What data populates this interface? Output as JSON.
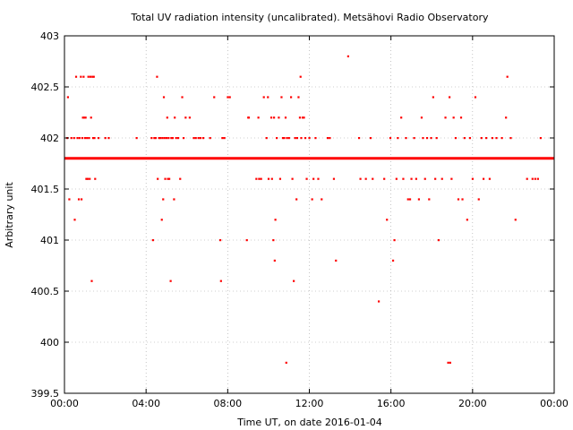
{
  "chart_data": {
    "type": "scatter",
    "title": "Total UV radiation intensity (uncalibrated). Metsähovi Radio Observatory",
    "xlabel": "Time UT, on date 2016-01-04",
    "ylabel": "Arbitrary unit",
    "xlim": [
      "00:00",
      "24:00"
    ],
    "ylim": [
      399.5,
      403
    ],
    "grid": true,
    "marker_color": "#ff0000",
    "x_ticks": [
      "00:00",
      "04:00",
      "08:00",
      "12:00",
      "16:00",
      "20:00",
      "00:00"
    ],
    "y_ticks": [
      "399.5",
      "400",
      "400.5",
      "401",
      "401.5",
      "402",
      "402.5",
      "403"
    ],
    "baseline": {
      "y": 401.8,
      "from": "00:00",
      "to": "24:00"
    },
    "points": [
      [
        "00:08",
        402.0
      ],
      [
        "00:10",
        402.4
      ],
      [
        "00:14",
        401.4
      ],
      [
        "00:20",
        402.0
      ],
      [
        "00:28",
        402.0
      ],
      [
        "00:30",
        401.2
      ],
      [
        "00:34",
        402.6
      ],
      [
        "00:38",
        402.0
      ],
      [
        "00:42",
        401.4
      ],
      [
        "00:44",
        402.0
      ],
      [
        "00:48",
        402.6
      ],
      [
        "00:50",
        401.4
      ],
      [
        "00:52",
        402.0
      ],
      [
        "00:54",
        402.2
      ],
      [
        "00:56",
        402.6
      ],
      [
        "00:58",
        402.2
      ],
      [
        "01:00",
        402.0
      ],
      [
        "01:02",
        402.2
      ],
      [
        "01:04",
        401.6
      ],
      [
        "01:06",
        402.0
      ],
      [
        "01:08",
        401.6
      ],
      [
        "01:10",
        402.6
      ],
      [
        "01:12",
        402.0
      ],
      [
        "01:14",
        401.6
      ],
      [
        "01:16",
        402.6
      ],
      [
        "01:18",
        402.2
      ],
      [
        "01:20",
        400.6
      ],
      [
        "01:22",
        402.6
      ],
      [
        "01:24",
        402.0
      ],
      [
        "01:26",
        402.6
      ],
      [
        "01:28",
        402.0
      ],
      [
        "01:30",
        401.6
      ],
      [
        "01:40",
        402.0
      ],
      [
        "02:10",
        402.0
      ],
      [
        "02:00",
        402.0
      ],
      [
        "03:32",
        402.0
      ],
      [
        "04:16",
        402.0
      ],
      [
        "04:20",
        401.0
      ],
      [
        "04:24",
        402.0
      ],
      [
        "04:28",
        402.0
      ],
      [
        "04:32",
        402.6
      ],
      [
        "04:34",
        401.6
      ],
      [
        "04:38",
        402.0
      ],
      [
        "04:42",
        402.0
      ],
      [
        "04:46",
        401.2
      ],
      [
        "04:48",
        402.0
      ],
      [
        "04:50",
        401.4
      ],
      [
        "04:52",
        402.4
      ],
      [
        "04:54",
        402.0
      ],
      [
        "04:56",
        401.6
      ],
      [
        "05:00",
        402.0
      ],
      [
        "05:02",
        402.2
      ],
      [
        "05:04",
        401.6
      ],
      [
        "05:06",
        402.0
      ],
      [
        "05:08",
        401.6
      ],
      [
        "05:12",
        400.6
      ],
      [
        "05:14",
        402.0
      ],
      [
        "05:18",
        402.0
      ],
      [
        "05:22",
        401.4
      ],
      [
        "05:24",
        402.2
      ],
      [
        "05:28",
        402.0
      ],
      [
        "05:34",
        402.0
      ],
      [
        "05:40",
        401.6
      ],
      [
        "05:46",
        402.4
      ],
      [
        "05:50",
        402.0
      ],
      [
        "05:56",
        402.2
      ],
      [
        "06:08",
        402.2
      ],
      [
        "06:20",
        402.0
      ],
      [
        "06:26",
        402.0
      ],
      [
        "06:34",
        402.0
      ],
      [
        "06:40",
        402.0
      ],
      [
        "06:48",
        402.0
      ],
      [
        "07:08",
        402.0
      ],
      [
        "07:20",
        402.4
      ],
      [
        "07:38",
        401.0
      ],
      [
        "07:40",
        400.6
      ],
      [
        "07:44",
        402.0
      ],
      [
        "07:50",
        402.0
      ],
      [
        "08:00",
        402.4
      ],
      [
        "08:06",
        402.4
      ],
      [
        "08:56",
        401.0
      ],
      [
        "09:00",
        402.2
      ],
      [
        "09:02",
        402.2
      ],
      [
        "09:24",
        401.6
      ],
      [
        "09:30",
        402.2
      ],
      [
        "09:32",
        401.6
      ],
      [
        "09:38",
        401.6
      ],
      [
        "09:46",
        402.4
      ],
      [
        "09:54",
        402.0
      ],
      [
        "09:58",
        402.4
      ],
      [
        "10:00",
        401.6
      ],
      [
        "10:08",
        402.2
      ],
      [
        "10:10",
        401.6
      ],
      [
        "10:14",
        401.0
      ],
      [
        "10:16",
        402.2
      ],
      [
        "10:18",
        400.8
      ],
      [
        "10:20",
        401.2
      ],
      [
        "10:24",
        402.0
      ],
      [
        "10:30",
        402.2
      ],
      [
        "10:34",
        401.6
      ],
      [
        "10:38",
        402.4
      ],
      [
        "10:42",
        402.0
      ],
      [
        "10:46",
        402.0
      ],
      [
        "10:50",
        402.2
      ],
      [
        "10:52",
        399.8
      ],
      [
        "10:54",
        402.0
      ],
      [
        "11:00",
        402.0
      ],
      [
        "11:06",
        402.4
      ],
      [
        "11:10",
        401.6
      ],
      [
        "11:14",
        400.6
      ],
      [
        "11:18",
        402.0
      ],
      [
        "11:22",
        401.4
      ],
      [
        "11:24",
        402.0
      ],
      [
        "11:28",
        402.4
      ],
      [
        "11:32",
        402.2
      ],
      [
        "11:34",
        402.6
      ],
      [
        "11:36",
        402.0
      ],
      [
        "11:40",
        402.2
      ],
      [
        "11:44",
        402.2
      ],
      [
        "11:48",
        402.0
      ],
      [
        "11:52",
        401.6
      ],
      [
        "12:00",
        402.0
      ],
      [
        "12:08",
        401.4
      ],
      [
        "12:12",
        401.6
      ],
      [
        "12:18",
        402.0
      ],
      [
        "12:26",
        401.6
      ],
      [
        "12:36",
        401.4
      ],
      [
        "12:54",
        402.0
      ],
      [
        "13:00",
        402.0
      ],
      [
        "13:12",
        401.6
      ],
      [
        "13:18",
        400.8
      ],
      [
        "13:54",
        402.8
      ],
      [
        "14:26",
        402.0
      ],
      [
        "14:30",
        401.6
      ],
      [
        "14:46",
        401.6
      ],
      [
        "15:00",
        402.0
      ],
      [
        "15:06",
        401.6
      ],
      [
        "15:24",
        400.4
      ],
      [
        "15:40",
        401.6
      ],
      [
        "15:48",
        401.2
      ],
      [
        "15:58",
        402.0
      ],
      [
        "16:06",
        400.8
      ],
      [
        "16:10",
        401.0
      ],
      [
        "16:16",
        401.6
      ],
      [
        "16:20",
        402.0
      ],
      [
        "16:30",
        402.2
      ],
      [
        "16:36",
        401.6
      ],
      [
        "16:44",
        402.0
      ],
      [
        "16:50",
        401.4
      ],
      [
        "16:56",
        401.4
      ],
      [
        "17:00",
        401.6
      ],
      [
        "17:08",
        402.0
      ],
      [
        "17:14",
        401.6
      ],
      [
        "17:22",
        401.4
      ],
      [
        "17:30",
        402.2
      ],
      [
        "17:34",
        402.0
      ],
      [
        "17:40",
        401.6
      ],
      [
        "17:46",
        402.0
      ],
      [
        "17:52",
        401.4
      ],
      [
        "17:58",
        402.0
      ],
      [
        "18:04",
        402.4
      ],
      [
        "18:10",
        401.6
      ],
      [
        "18:14",
        402.0
      ],
      [
        "18:20",
        401.0
      ],
      [
        "18:30",
        401.6
      ],
      [
        "18:40",
        402.2
      ],
      [
        "18:48",
        399.8
      ],
      [
        "18:52",
        402.4
      ],
      [
        "18:54",
        399.8
      ],
      [
        "18:58",
        401.6
      ],
      [
        "19:04",
        402.2
      ],
      [
        "19:10",
        402.0
      ],
      [
        "19:18",
        401.4
      ],
      [
        "19:26",
        402.2
      ],
      [
        "19:30",
        401.4
      ],
      [
        "19:36",
        402.0
      ],
      [
        "19:44",
        401.2
      ],
      [
        "19:52",
        402.0
      ],
      [
        "20:00",
        401.6
      ],
      [
        "20:08",
        402.4
      ],
      [
        "20:18",
        401.4
      ],
      [
        "20:26",
        402.0
      ],
      [
        "20:32",
        401.6
      ],
      [
        "20:40",
        402.0
      ],
      [
        "20:50",
        401.6
      ],
      [
        "20:58",
        402.0
      ],
      [
        "21:10",
        402.0
      ],
      [
        "21:26",
        402.0
      ],
      [
        "21:38",
        402.2
      ],
      [
        "21:42",
        402.6
      ],
      [
        "21:52",
        402.0
      ],
      [
        "22:06",
        401.2
      ],
      [
        "22:40",
        401.6
      ],
      [
        "22:56",
        401.6
      ],
      [
        "23:04",
        401.6
      ],
      [
        "23:12",
        401.6
      ],
      [
        "23:20",
        402.0
      ]
    ]
  }
}
